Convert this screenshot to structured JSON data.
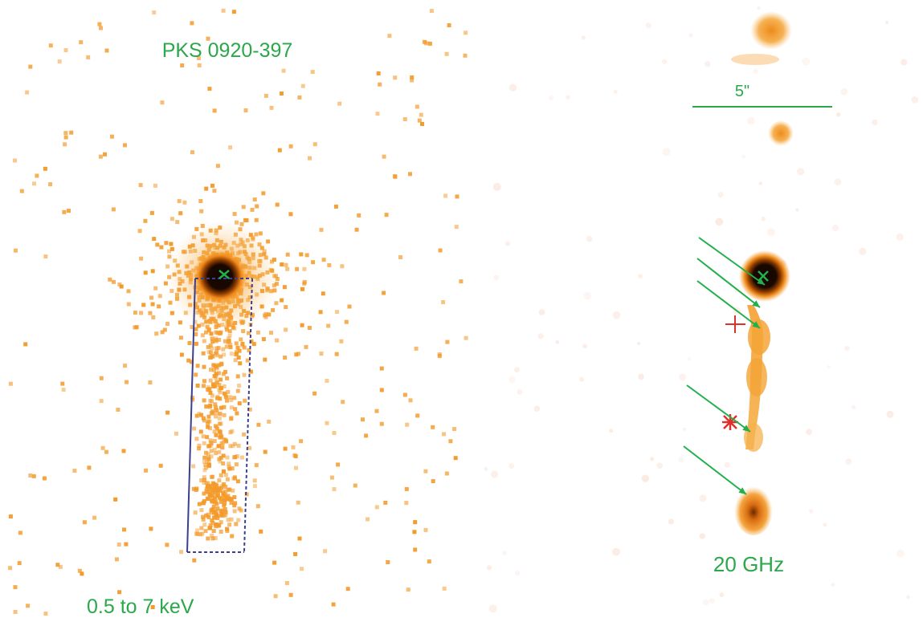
{
  "left_panel": {
    "source_name": "PKS 0920-397",
    "energy_band": "0.5 to 7 keV"
  },
  "right_panel": {
    "scale_label": "5\"",
    "frequency_label": "20 GHz"
  },
  "colors": {
    "label_green": "#2aa84a",
    "marker_green": "#22b04c",
    "marker_red": "#e0302a",
    "region_blue": "#3a3f8f",
    "emission_orange": "#f5a02a",
    "emission_core": "#1a0a00"
  }
}
